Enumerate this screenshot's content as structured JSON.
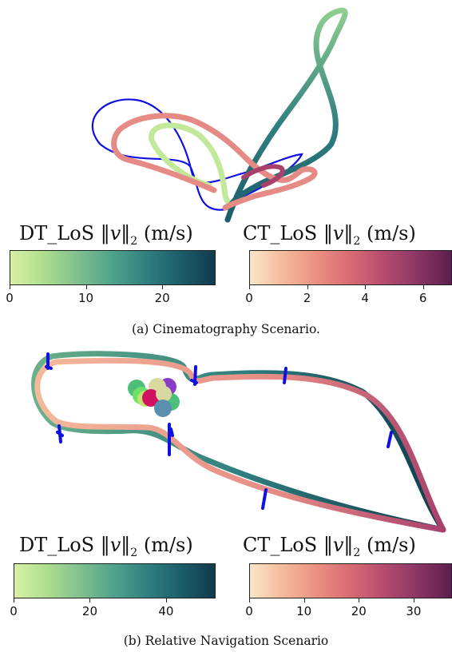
{
  "panels": [
    {
      "id": "a",
      "caption": "(a) Cinematography Scenario.",
      "colorbars": [
        {
          "label_prefix": "DT_LoS",
          "label_norm": "‖v‖",
          "label_sub": "2",
          "label_unit": "(m/s)",
          "ticks": [
            "0",
            "10",
            "20"
          ],
          "tick_values": [
            0,
            10,
            20
          ],
          "range": [
            0,
            27
          ],
          "colormap": [
            "#d9f0a3",
            "#addd8e",
            "#7fbf8f",
            "#4fa28b",
            "#2f7f7f",
            "#1c5d6a",
            "#0f3b4c"
          ]
        },
        {
          "label_prefix": "CT_LoS",
          "label_norm": "‖v‖",
          "label_sub": "2",
          "label_unit": "(m/s)",
          "ticks": [
            "0",
            "2",
            "4",
            "6"
          ],
          "tick_values": [
            0,
            2,
            4,
            6
          ],
          "range": [
            0,
            7
          ],
          "colormap": [
            "#fbe5c8",
            "#f4b99a",
            "#eb8f80",
            "#d86a73",
            "#b64c6e",
            "#8c3565",
            "#5c1e4d"
          ]
        }
      ]
    },
    {
      "id": "b",
      "caption": "(b) Relative Navigation Scenario",
      "colorbars": [
        {
          "label_prefix": "DT_LoS",
          "label_norm": "‖v‖",
          "label_sub": "2",
          "label_unit": "(m/s)",
          "ticks": [
            "0",
            "20",
            "40"
          ],
          "tick_values": [
            0,
            20,
            40
          ],
          "range": [
            0,
            53
          ],
          "colormap": [
            "#d9f0a3",
            "#addd8e",
            "#7fbf8f",
            "#4fa28b",
            "#2f7f7f",
            "#1c5d6a",
            "#0f3b4c"
          ]
        },
        {
          "label_prefix": "CT_LoS",
          "label_norm": "‖v‖",
          "label_sub": "2",
          "label_unit": "(m/s)",
          "ticks": [
            "0",
            "10",
            "20",
            "30"
          ],
          "tick_values": [
            0,
            10,
            20,
            30
          ],
          "range": [
            0,
            37
          ],
          "colormap": [
            "#fbe5c8",
            "#f4b99a",
            "#eb8f80",
            "#d86a73",
            "#b64c6e",
            "#8c3565",
            "#5c1e4d"
          ]
        }
      ]
    }
  ],
  "colors": {
    "reference_path": "#1010e0",
    "dt_path_light": "#c2e89a",
    "dt_path_mid": "#6ab08a",
    "dt_path_dark": "#1c5d6a",
    "ct_path_light": "#f4b99a",
    "ct_path_mid": "#e58a84",
    "ct_path_dark": "#a8406c",
    "obstacle_colors": [
      "#3a8fd6",
      "#6ee06a",
      "#e040a0",
      "#8a3cc8",
      "#d8d8a0",
      "#5a8fb0",
      "#4cc07a",
      "#c4e070",
      "#d01060"
    ]
  }
}
